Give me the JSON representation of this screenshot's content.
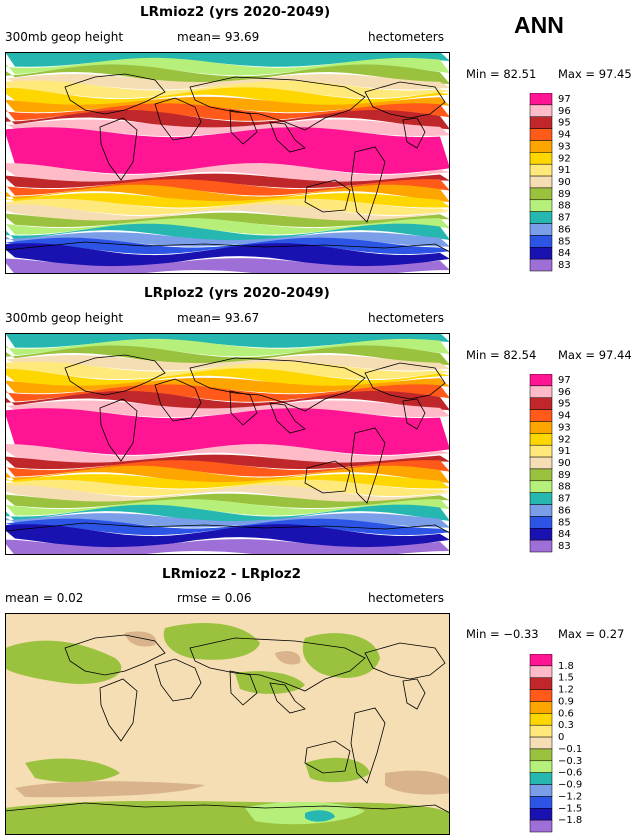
{
  "season": "ANN",
  "colors": {
    "main": [
      "#9f6fd8",
      "#1a12b0",
      "#2c55e6",
      "#7a9ee8",
      "#26b8b0",
      "#b6f07a",
      "#9bc23e",
      "#f5deb3",
      "#ffe97a",
      "#ffd700",
      "#ffa500",
      "#ff5a1a",
      "#c0272b",
      "#ffbcc8",
      "#ff1493"
    ],
    "diff": [
      "#9f6fd8",
      "#1a12b0",
      "#2c55e6",
      "#7a9ee8",
      "#26b8b0",
      "#b6f07a",
      "#9bc23e",
      "#f5deb3",
      "#ffe97a",
      "#ffd700",
      "#ffa500",
      "#ff5a1a",
      "#c0272b",
      "#ffbcc8",
      "#ff1493"
    ],
    "land": "#000000"
  },
  "panels": [
    {
      "title": "LRmioz2 (yrs 2020-2049)",
      "left_text": "300mb geop height",
      "stat_text": "mean=  93.69",
      "units": "hectometers",
      "min_text": "Min =  82.51",
      "max_text": "Max =  97.45",
      "legend_labels": [
        "97",
        "96",
        "95",
        "94",
        "93",
        "92",
        "91",
        "90",
        "89",
        "88",
        "87",
        "86",
        "85",
        "84",
        "83"
      ]
    },
    {
      "title": "LRploz2 (yrs 2020-2049)",
      "left_text": "300mb geop height",
      "stat_text": "mean=  93.67",
      "units": "hectometers",
      "min_text": "Min =  82.54",
      "max_text": "Max =  97.44",
      "legend_labels": [
        "97",
        "96",
        "95",
        "94",
        "93",
        "92",
        "91",
        "90",
        "89",
        "88",
        "87",
        "86",
        "85",
        "84",
        "83"
      ]
    },
    {
      "title": "LRmioz2 - LRploz2",
      "left_text": "mean =   0.02",
      "stat_text": "rmse =   0.06",
      "units": "hectometers",
      "min_text": "Min =  −0.33",
      "max_text": "Max =    0.27",
      "legend_labels": [
        "1.8",
        "1.5",
        "1.2",
        "0.9",
        "0.6",
        "0.3",
        "0",
        "−0.1",
        "−0.3",
        "−0.6",
        "−0.9",
        "−1.2",
        "−1.5",
        "−1.8"
      ]
    }
  ],
  "map_data": {
    "zonal_bands_top_to_bottom": [
      "87",
      "88",
      "89",
      "90",
      "91",
      "92",
      "93",
      "94",
      "95",
      "96",
      "97",
      "96",
      "95",
      "94",
      "93",
      "92",
      "91",
      "90",
      "89",
      "88",
      "87",
      "86",
      "85",
      "84",
      "83"
    ]
  }
}
